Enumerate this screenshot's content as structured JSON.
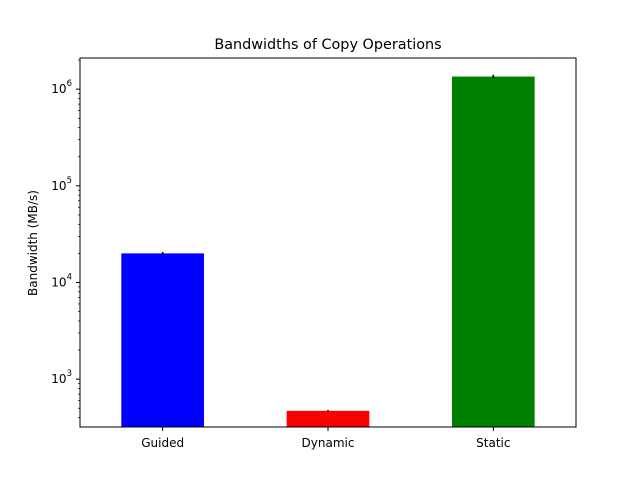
{
  "chart_data": {
    "type": "bar",
    "title": "Bandwidths of Copy Operations",
    "xlabel": "",
    "ylabel": "Bandwidth (MB/s)",
    "yscale": "log",
    "ylim": [
      320,
      2100000
    ],
    "y_ticks": [
      {
        "value": 1000,
        "base": "10",
        "exp": "3"
      },
      {
        "value": 10000,
        "base": "10",
        "exp": "4"
      },
      {
        "value": 100000,
        "base": "10",
        "exp": "5"
      },
      {
        "value": 1000000,
        "base": "10",
        "exp": "6"
      }
    ],
    "categories": [
      "Guided",
      "Dynamic",
      "Static"
    ],
    "values": [
      20000,
      470,
      1350000
    ],
    "errors": [
      700,
      10,
      60000
    ],
    "colors": [
      "#0000ff",
      "#ff0000",
      "#008000"
    ],
    "error_color": "#000000",
    "grid": false,
    "legend": "none"
  }
}
